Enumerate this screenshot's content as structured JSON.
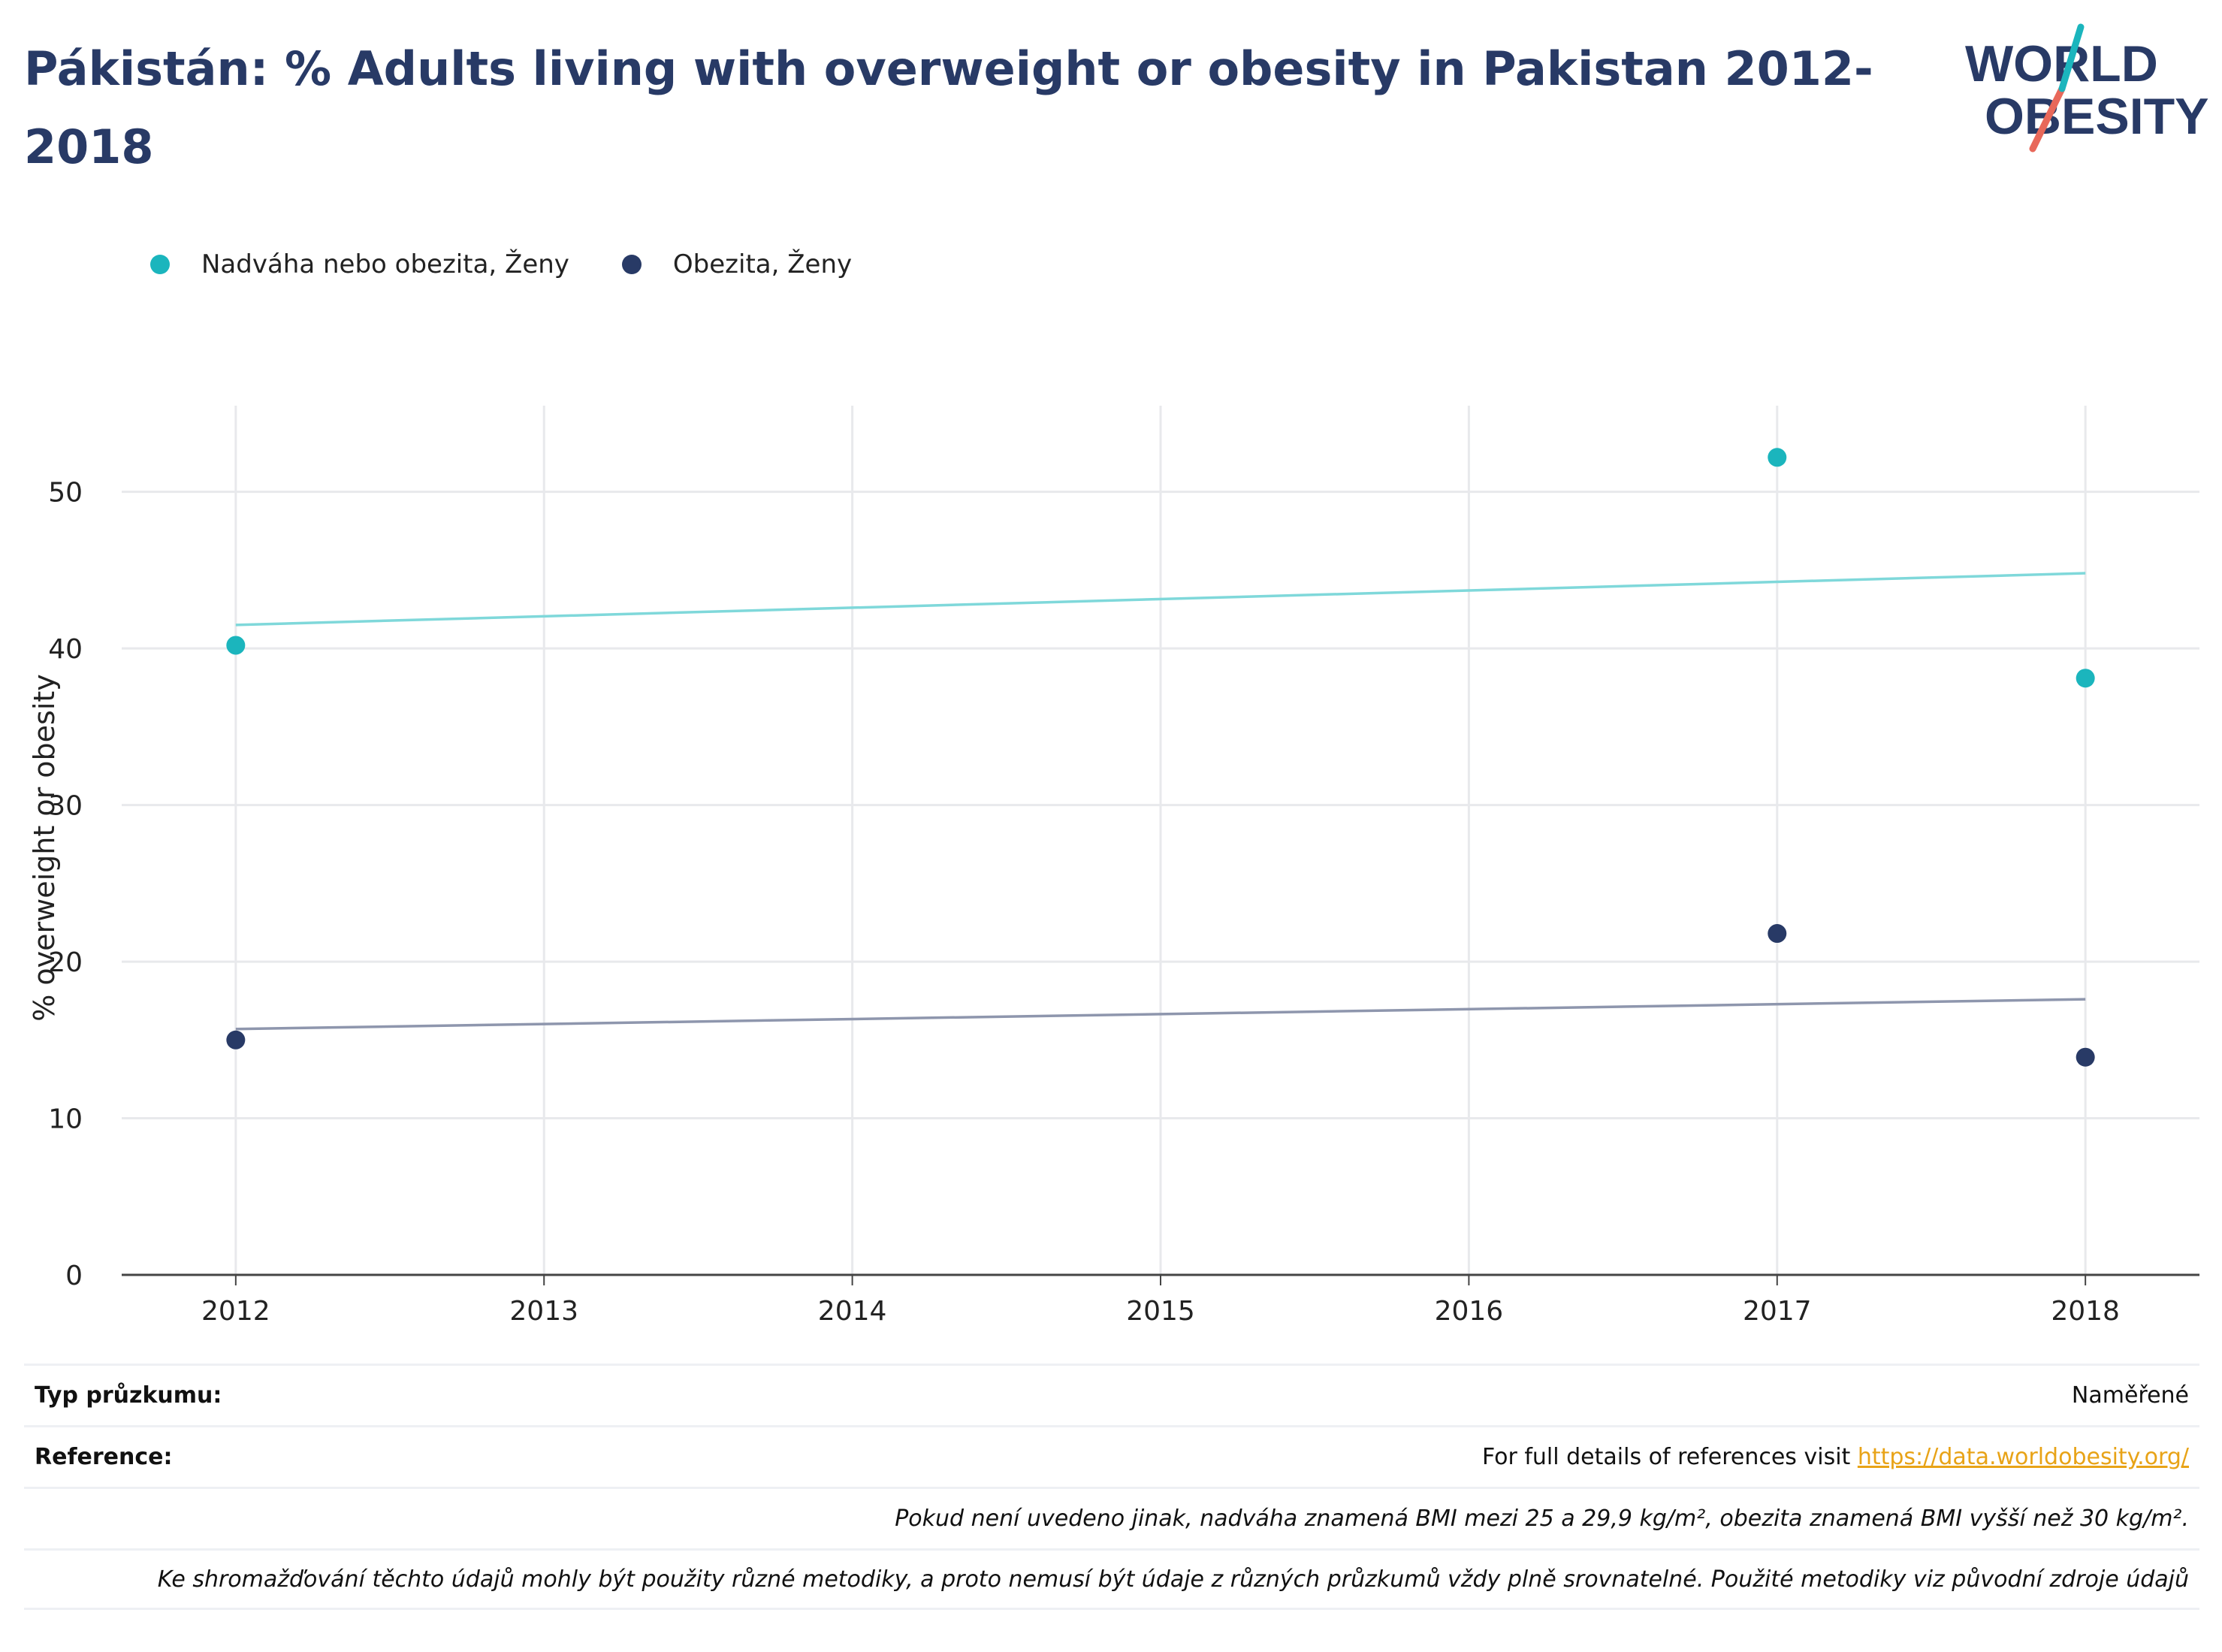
{
  "title": "Pákistán: % Adults living with overweight or obesity in Pakistan 2012-2018",
  "logo": {
    "line1": "WORLD",
    "line2": "OBESITY"
  },
  "colors": {
    "series1": "#1bb5bd",
    "series2": "#283a66",
    "trend1": "#7fd8da",
    "trend2": "#8e96ad",
    "title": "#283a66",
    "link": "#e8a317"
  },
  "chart_data": {
    "type": "scatter",
    "ylabel": "% overweight or obesity",
    "xlabel": "",
    "xlim": [
      2011.63,
      2018.37
    ],
    "ylim": [
      0,
      55.5
    ],
    "xticks": [
      2012,
      2013,
      2014,
      2015,
      2016,
      2017,
      2018
    ],
    "yticks": [
      0,
      10,
      20,
      30,
      40,
      50
    ],
    "grid": true,
    "legend_position": "top-left",
    "series": [
      {
        "name": "Nadváha nebo obezita, Ženy",
        "x": [
          2012,
          2017,
          2018
        ],
        "y": [
          40.2,
          52.2,
          38.1
        ],
        "trend": [
          41.5,
          44.8
        ]
      },
      {
        "name": "Obezita, Ženy",
        "x": [
          2012,
          2017,
          2018
        ],
        "y": [
          15.0,
          21.8,
          13.9
        ],
        "trend": [
          15.7,
          17.6
        ]
      }
    ]
  },
  "footer": {
    "survey_label": "Typ průzkumu:",
    "survey_value": "Naměřené",
    "reference_label": "Reference:",
    "reference_text": "For full details of references visit ",
    "reference_link": "https://data.worldobesity.org/",
    "note1": "Pokud není uvedeno jinak, nadváha znamená BMI mezi 25 a 29,9 kg/m², obezita znamená BMI vyšší než 30 kg/m².",
    "note2": "Ke shromažďování těchto údajů mohly být použity různé metodiky, a proto nemusí být údaje z různých průzkumů vždy plně srovnatelné. Použité metodiky viz původní zdroje údajů"
  }
}
